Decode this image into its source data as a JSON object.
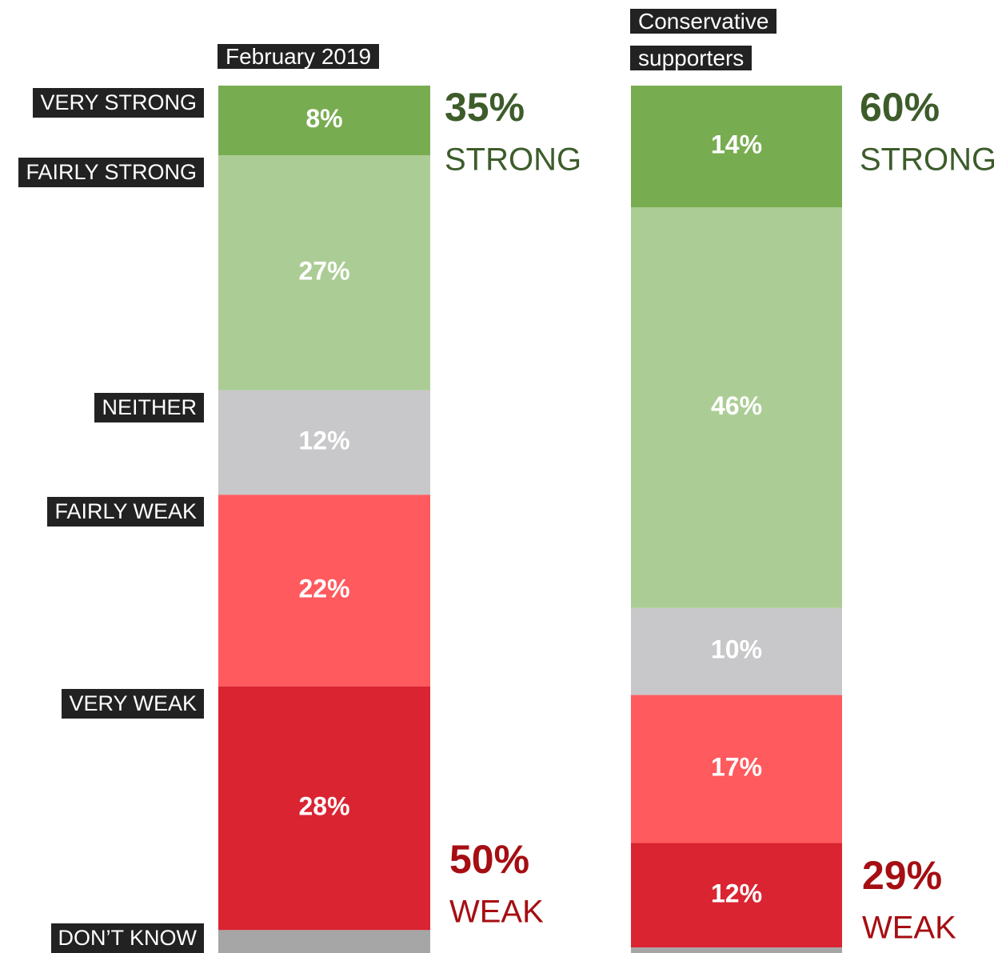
{
  "chart_data": {
    "type": "stacked_bar",
    "categories": [
      "February 2019",
      "Conservative supporters"
    ],
    "series": [
      {
        "name": "VERY STRONG",
        "color": "#78ac50",
        "values": [
          8,
          14
        ],
        "value_labels": [
          "8%",
          "14%"
        ]
      },
      {
        "name": "FAIRLY STRONG",
        "color": "#abcd95",
        "values": [
          27,
          46
        ],
        "value_labels": [
          "27%",
          "46%"
        ]
      },
      {
        "name": "NEITHER",
        "color": "#c8c7c9",
        "values": [
          12,
          10
        ],
        "value_labels": [
          "12%",
          "10%"
        ]
      },
      {
        "name": "FAIRLY WEAK",
        "color": "#ff5a5e",
        "values": [
          22,
          17
        ],
        "value_labels": [
          "22%",
          "17%"
        ]
      },
      {
        "name": "VERY WEAK",
        "color": "#da2431",
        "values": [
          28,
          12
        ],
        "value_labels": [
          "28%",
          "12%"
        ]
      },
      {
        "name": "DON’T KNOW",
        "color": "#a6a6a6",
        "values": [
          3,
          1
        ]
      }
    ],
    "ylim": [
      0,
      100
    ],
    "summaries": [
      [
        {
          "label": "35%",
          "text": "STRONG",
          "color": "#3d5c2a"
        },
        {
          "label": "50%",
          "text": "WEAK",
          "color": "#a50e12"
        }
      ],
      [
        {
          "label": "60%",
          "text": "STRONG",
          "color": "#3d5c2a"
        },
        {
          "label": "29%",
          "text": "WEAK",
          "color": "#a50e12"
        }
      ]
    ]
  }
}
